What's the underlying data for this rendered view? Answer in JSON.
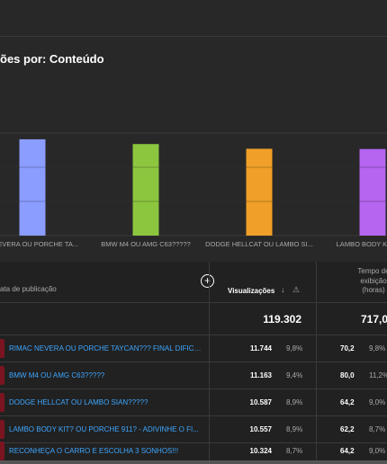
{
  "section": {
    "title": "ões por: Conteúdo"
  },
  "chart_data": {
    "type": "bar",
    "categories": [
      "E NEVERA OU PORCHE TA...",
      "BMW M4 OU AMG C63?????",
      "DODGE HELLCAT OU LAMBO SI...",
      "LAMBO BODY KIT? OU"
    ],
    "values": [
      11744,
      11163,
      10587,
      10557
    ],
    "colors": [
      "#8b9dff",
      "#8cc63f",
      "#f0a028",
      "#b565f0"
    ],
    "ylim": [
      0,
      12500
    ],
    "grid": true
  },
  "table": {
    "header": {
      "date_col": "ata de publicação",
      "add_col_icon": "+",
      "views_col": "Visualizações",
      "sort_icon": "↓",
      "warning_icon": "⚠",
      "watch_col_line1": "Tempo de",
      "watch_col_line2": "exibição",
      "watch_col_line3": "(horas)"
    },
    "total": {
      "views": "119.302",
      "watch": "717,0"
    },
    "rows": [
      {
        "title": "RIMAC NEVERA OU PORCHE TAYCAN??? FINAL DIFICIL...",
        "views": "11.744",
        "views_pct": "9,8%",
        "watch": "70,2",
        "watch_pct": "9,8%"
      },
      {
        "title": "BMW M4 OU AMG C63?????",
        "views": "11.163",
        "views_pct": "9,4%",
        "watch": "80,0",
        "watch_pct": "11,2%"
      },
      {
        "title": "DODGE HELLCAT OU LAMBO SIAN?????",
        "views": "10.587",
        "views_pct": "8,9%",
        "watch": "64,2",
        "watch_pct": "9,0%"
      },
      {
        "title": "LAMBO BODY KIT? OU PORCHE 911? - ADIVINHE O FI...",
        "views": "10.557",
        "views_pct": "8,9%",
        "watch": "62,2",
        "watch_pct": "8,7%"
      },
      {
        "title": "RECONHEÇA O CARRO E ESCOLHA 3 SONHOS!!!",
        "views": "10.324",
        "views_pct": "8,7%",
        "watch": "64,2",
        "watch_pct": "9,0%"
      }
    ]
  }
}
